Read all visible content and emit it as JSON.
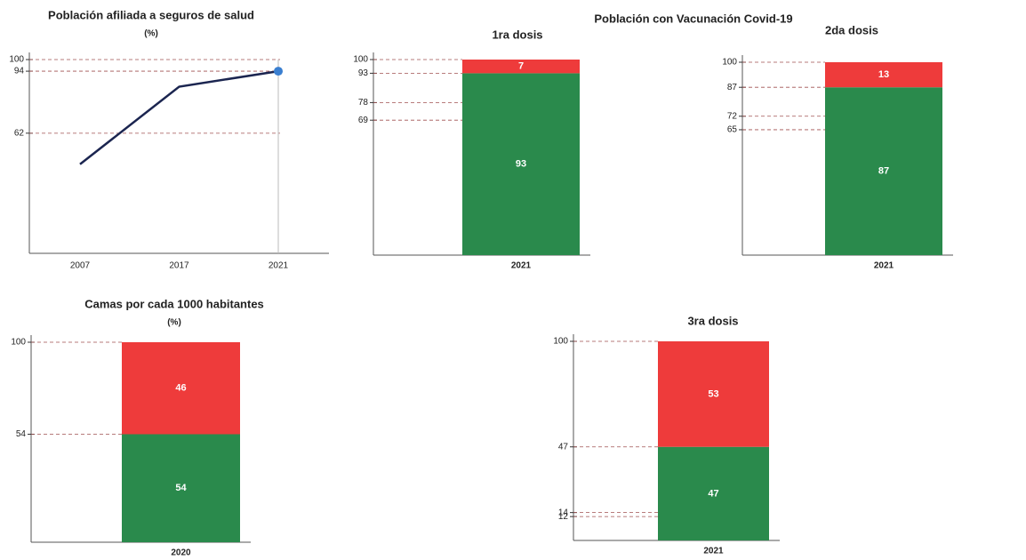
{
  "heading": "Población con Vacunación Covid-19",
  "chart_data": [
    {
      "type": "line",
      "title": "Población afiliada a seguros de salud",
      "subtitle": "(%)",
      "categories": [
        "2007",
        "2017",
        "2021"
      ],
      "values": [
        46,
        86,
        94
      ],
      "color": "#1b2550",
      "ylim": [
        0,
        100
      ],
      "yticks": [
        100,
        94,
        62
      ],
      "grid": true
    },
    {
      "type": "bar",
      "title": "1ra dosis",
      "categories": [
        "2021"
      ],
      "series": [
        {
          "color": "#2a8a4c",
          "values": [
            93
          ]
        },
        {
          "color": "#ee3b3b",
          "values": [
            7
          ]
        }
      ],
      "ylim": [
        0,
        100
      ],
      "yticks": [
        100,
        93,
        78,
        69
      ],
      "grid": true
    },
    {
      "type": "bar",
      "title": "2da dosis",
      "categories": [
        "2021"
      ],
      "series": [
        {
          "color": "#2a8a4c",
          "values": [
            87
          ]
        },
        {
          "color": "#ee3b3b",
          "values": [
            13
          ]
        }
      ],
      "ylim": [
        0,
        100
      ],
      "yticks": [
        100,
        87,
        72,
        65
      ],
      "grid": true
    },
    {
      "type": "bar",
      "title": "Camas por cada 1000 habitantes",
      "subtitle": "(%)",
      "categories": [
        "2020"
      ],
      "series": [
        {
          "color": "#2a8a4c",
          "values": [
            54
          ]
        },
        {
          "color": "#ee3b3b",
          "values": [
            46
          ]
        }
      ],
      "ylim": [
        0,
        100
      ],
      "yticks": [
        100,
        54
      ],
      "grid": true
    },
    {
      "type": "bar",
      "title": "3ra dosis",
      "categories": [
        "2021"
      ],
      "series": [
        {
          "color": "#2a8a4c",
          "values": [
            47
          ]
        },
        {
          "color": "#ee3b3b",
          "values": [
            53
          ]
        }
      ],
      "ylim": [
        0,
        100
      ],
      "yticks": [
        100,
        47,
        14,
        12
      ],
      "grid": true
    }
  ]
}
